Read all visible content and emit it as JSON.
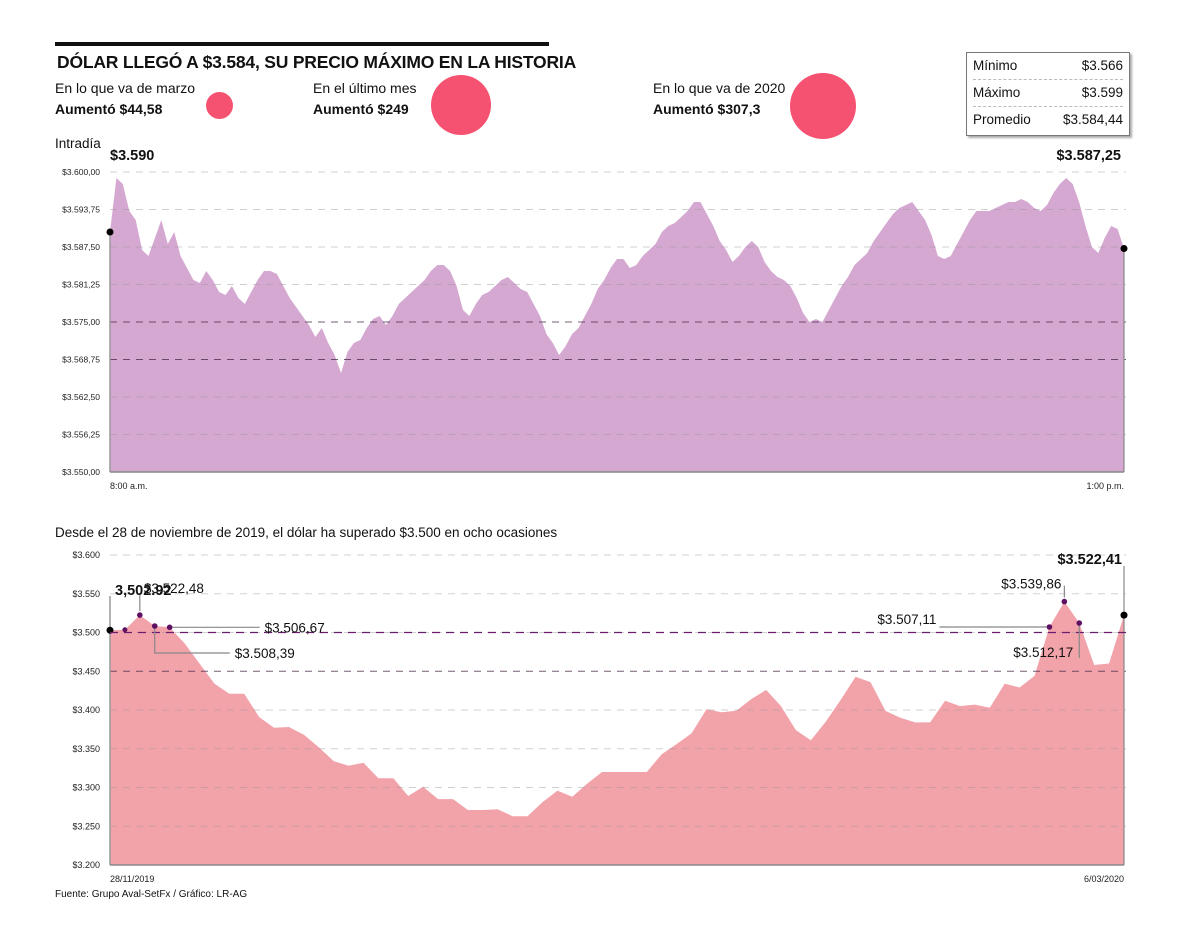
{
  "header": {
    "title": "DÓLAR LLEGÓ A $3.584, SU PRECIO MÁXIMO EN LA HISTORIA"
  },
  "stats": [
    {
      "label": "En lo que va de marzo",
      "value": "Aumentó $44,58",
      "amount": 44.58
    },
    {
      "label": "En el último mes",
      "value": "Aumentó $249",
      "amount": 249
    },
    {
      "label": "En lo que va de 2020",
      "value": "Aumentó $307,3",
      "amount": 307.3
    }
  ],
  "summary": [
    {
      "label": "Mínimo",
      "value": "$3.566"
    },
    {
      "label": "Máximo",
      "value": "$3.599"
    },
    {
      "label": "Promedio",
      "value": "$3.584,44"
    }
  ],
  "colors": {
    "bubble": "#f55170",
    "intraday_fill": "#d5a8d2",
    "history_fill": "#f2a3aa",
    "threshold_line": "#6a1b6e",
    "marker": "#5e1063"
  },
  "chart_data": [
    {
      "type": "area",
      "title": "Intradía",
      "xlabel": "",
      "ylabel": "",
      "x_tick_labels": [
        "8:00 a.m.",
        "1:00 p.m."
      ],
      "y_tick_labels": [
        "$3.600,00",
        "$3.593,75",
        "$3.587,50",
        "$3.581,25",
        "$3.575,00",
        "$3.568,75",
        "$3.562,50",
        "$3.556,25",
        "$3.550,00"
      ],
      "ylim": [
        3550,
        3600
      ],
      "grid": true,
      "open_label": "$3.590",
      "close_label": "$3.587,25",
      "open_value": 3590,
      "close_value": 3587.25,
      "x_start": "8:00 a.m.",
      "x_end": "1:00 p.m.",
      "values": [
        3590,
        3599,
        3598,
        3593.5,
        3592,
        3587,
        3586,
        3589,
        3592,
        3588,
        3590,
        3586,
        3584,
        3582,
        3581.5,
        3583.5,
        3582,
        3580,
        3579.5,
        3581,
        3579,
        3578,
        3580,
        3582,
        3583.5,
        3583.5,
        3583,
        3581,
        3579,
        3577.5,
        3576,
        3574.5,
        3572.5,
        3574,
        3571.5,
        3569.5,
        3566.5,
        3570,
        3571.5,
        3572,
        3574,
        3575.5,
        3576,
        3574.5,
        3576,
        3578,
        3579,
        3580,
        3581,
        3582,
        3583.5,
        3584.5,
        3584.5,
        3583.5,
        3581,
        3577,
        3576,
        3578,
        3579.5,
        3580,
        3581,
        3582,
        3582.5,
        3581.5,
        3580.5,
        3580,
        3578,
        3576,
        3573,
        3571.5,
        3569.5,
        3571,
        3573,
        3574,
        3576,
        3578,
        3580.5,
        3582,
        3584,
        3585.5,
        3585.5,
        3584,
        3584.5,
        3586,
        3587,
        3588,
        3590,
        3591,
        3591.5,
        3592.5,
        3593.5,
        3595,
        3595,
        3593,
        3591,
        3588.5,
        3587,
        3585,
        3586,
        3587.5,
        3588.5,
        3587.5,
        3585,
        3583.5,
        3582.5,
        3582,
        3581,
        3579,
        3576.5,
        3575,
        3575.5,
        3575,
        3577,
        3579,
        3581,
        3582.5,
        3584.5,
        3585.5,
        3586.5,
        3588.5,
        3590,
        3591.5,
        3593,
        3594,
        3594.5,
        3595,
        3593.5,
        3592,
        3589.5,
        3586,
        3585.5,
        3586,
        3588,
        3590,
        3592,
        3593.5,
        3593.5,
        3593.5,
        3594,
        3594.5,
        3595,
        3595,
        3595.5,
        3595,
        3594,
        3593.5,
        3594.5,
        3596.5,
        3598,
        3599,
        3598,
        3595,
        3591,
        3587.5,
        3586.5,
        3589,
        3591,
        3590.5,
        3587.25
      ]
    },
    {
      "type": "area",
      "title": "Desde el 28 de noviembre de 2019, el dólar ha superado $3.500 en ocho ocasiones",
      "xlabel": "",
      "ylabel": "",
      "x_tick_labels": [
        "28/11/2019",
        "6/03/2020"
      ],
      "y_tick_labels": [
        "$3.600",
        "$3.550",
        "$3.500",
        "$3.450",
        "$3.400",
        "$3.350",
        "$3.300",
        "$3.250",
        "$3.200"
      ],
      "ylim": [
        3200,
        3600
      ],
      "grid": true,
      "threshold": 3500,
      "start_label": "3,502.92",
      "end_label": "$3.522,41",
      "values": [
        3502.92,
        3503.5,
        3522.48,
        3508.39,
        3506.67,
        3486,
        3460,
        3434,
        3421,
        3421,
        3391,
        3377,
        3378,
        3368,
        3352,
        3334,
        3328,
        3332,
        3312,
        3312,
        3289,
        3301,
        3285,
        3285,
        3271,
        3271,
        3272,
        3263,
        3263,
        3281,
        3296,
        3288,
        3305,
        3320,
        3320,
        3320,
        3320,
        3343,
        3356,
        3370,
        3401,
        3397,
        3399,
        3414,
        3426,
        3405,
        3374,
        3361,
        3385,
        3413,
        3443,
        3436,
        3399,
        3390,
        3384,
        3384,
        3412,
        3405,
        3407,
        3403,
        3434,
        3429,
        3444,
        3507.11,
        3539.86,
        3512.17,
        3458,
        3460,
        3522.41
      ],
      "annotations": [
        {
          "label": "$3.522,48",
          "value": 3522.48,
          "index": 2
        },
        {
          "label": "$3.508,39",
          "value": 3508.39,
          "index": 3
        },
        {
          "label": "$3.506,67",
          "value": 3506.67,
          "index": 4
        },
        {
          "label": "$3.507,11",
          "value": 3507.11,
          "index": 63
        },
        {
          "label": "$3.539,86",
          "value": 3539.86,
          "index": 64
        },
        {
          "label": "$3.512,17",
          "value": 3512.17,
          "index": 65
        }
      ]
    }
  ],
  "footer": {
    "source": "Fuente: Grupo Aval-SetFx  / Gráfico: LR-AG"
  }
}
